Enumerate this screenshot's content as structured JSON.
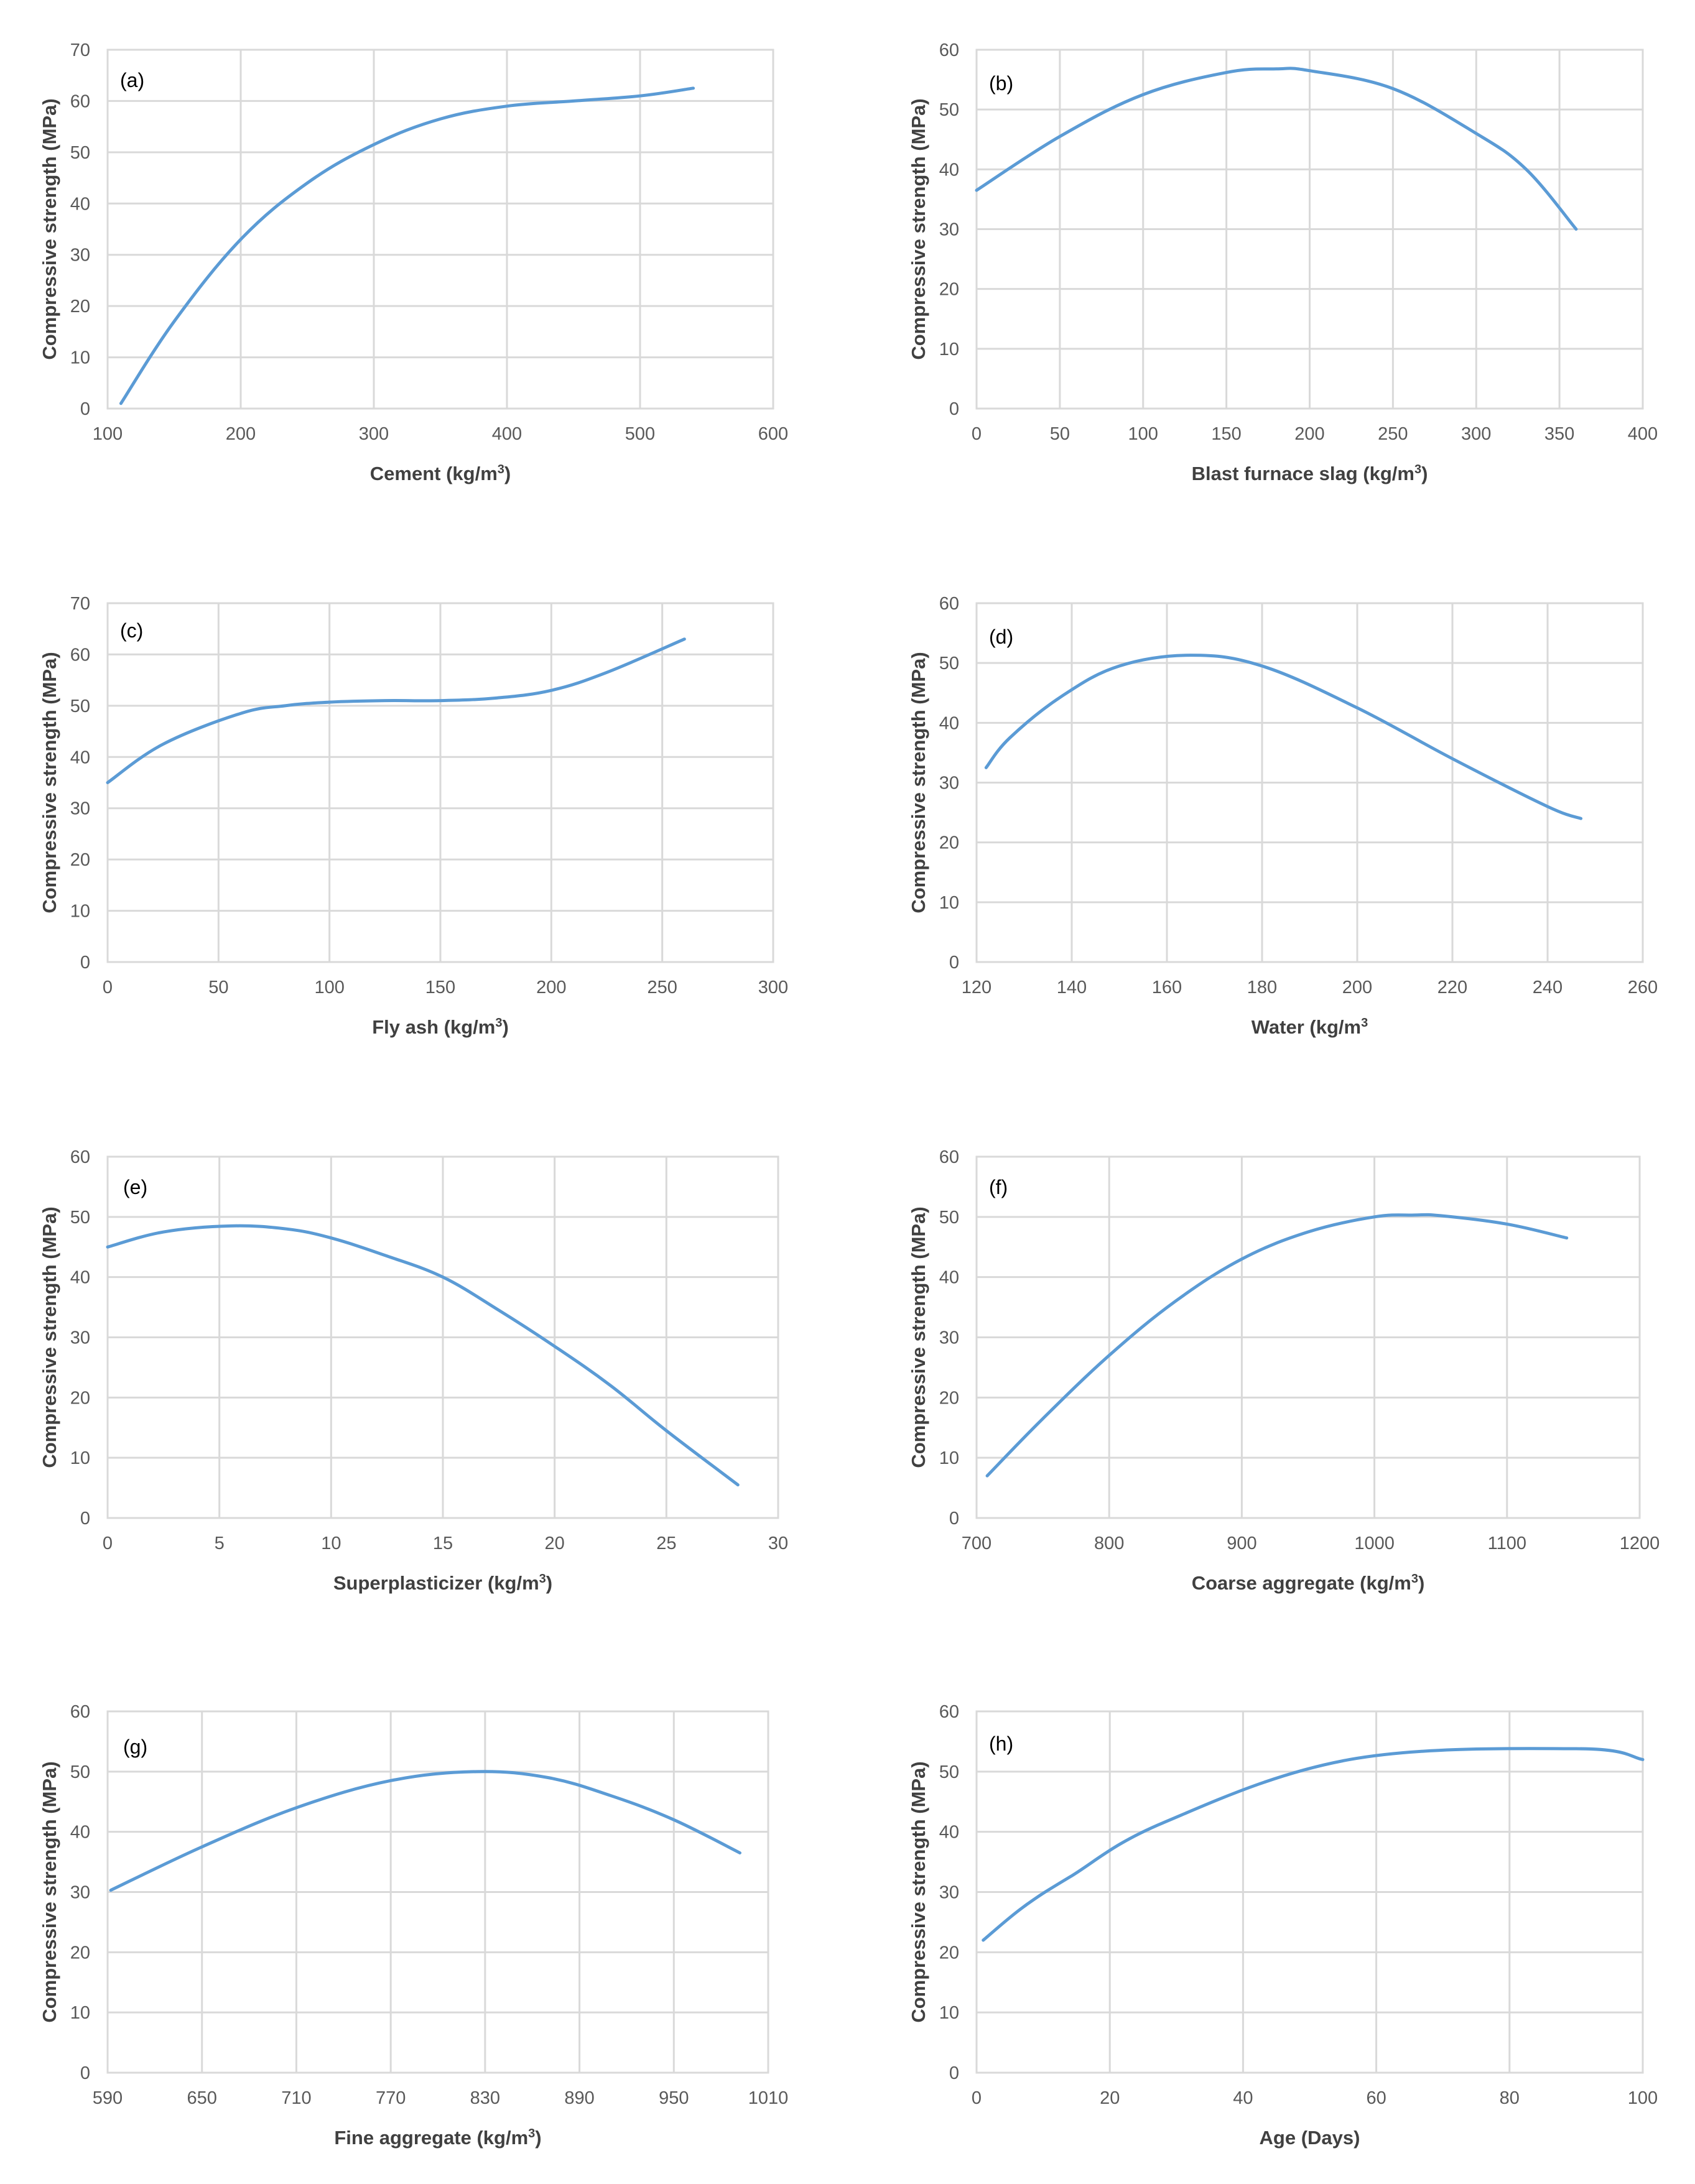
{
  "chart_data": [
    {
      "type": "line",
      "panel_label": "(a)",
      "xlabel": "Cement (kg/m",
      "xlabel_unit_exp": "3",
      "xlabel_tail": ")",
      "ylabel": "Compressive strength (MPa)",
      "xlim": [
        100,
        600
      ],
      "ylim": [
        0,
        70
      ],
      "xticks": [
        100,
        200,
        300,
        400,
        500,
        600
      ],
      "yticks": [
        0,
        10,
        20,
        30,
        40,
        50,
        60,
        70
      ],
      "series": [
        {
          "name": "Compressive strength",
          "x": [
            110,
            150,
            200,
            250,
            300,
            350,
            400,
            450,
            500,
            540
          ],
          "y": [
            1,
            17,
            33,
            44,
            51.5,
            56.5,
            59,
            60,
            61,
            62.5
          ]
        }
      ]
    },
    {
      "type": "line",
      "panel_label": "(b)",
      "xlabel": "Blast furnace slag (kg/m",
      "xlabel_unit_exp": "3",
      "xlabel_tail": ")",
      "ylabel": "Compressive strength (MPa)",
      "xlim": [
        0,
        400
      ],
      "ylim": [
        0,
        60
      ],
      "xticks": [
        0,
        50,
        100,
        150,
        200,
        250,
        300,
        350,
        400
      ],
      "yticks": [
        0,
        10,
        20,
        30,
        40,
        50,
        60
      ],
      "series": [
        {
          "name": "Compressive strength",
          "x": [
            0,
            50,
            100,
            150,
            180,
            200,
            250,
            300,
            330,
            360
          ],
          "y": [
            36.5,
            45.5,
            52.5,
            56.2,
            56.8,
            56.5,
            53.5,
            46,
            40,
            30
          ]
        }
      ]
    },
    {
      "type": "line",
      "panel_label": "(c)",
      "xlabel": "Fly ash  (kg/m",
      "xlabel_unit_exp": "3",
      "xlabel_tail": ")",
      "ylabel": "Compressive strength (MPa)",
      "xlim": [
        0,
        300
      ],
      "ylim": [
        0,
        70
      ],
      "xticks": [
        0,
        50,
        100,
        150,
        200,
        250,
        300
      ],
      "yticks": [
        0,
        10,
        20,
        30,
        40,
        50,
        60,
        70
      ],
      "series": [
        {
          "name": "Compressive strength",
          "x": [
            0,
            25,
            60,
            80,
            100,
            125,
            150,
            175,
            200,
            225,
            260
          ],
          "y": [
            35,
            42.5,
            48.5,
            50,
            50.7,
            51,
            51,
            51.5,
            53,
            56.5,
            63
          ]
        }
      ]
    },
    {
      "type": "line",
      "panel_label": "(d)",
      "xlabel": "Water (kg/m",
      "xlabel_unit_exp": "3",
      "xlabel_tail": "",
      "ylabel": "Compressive strength (MPa)",
      "xlim": [
        120,
        260
      ],
      "ylim": [
        0,
        60
      ],
      "xticks": [
        120,
        140,
        160,
        180,
        200,
        220,
        240,
        260
      ],
      "yticks": [
        0,
        10,
        20,
        30,
        40,
        50,
        60
      ],
      "series": [
        {
          "name": "Compressive strength",
          "x": [
            122,
            127,
            138,
            150,
            165,
            180,
            200,
            220,
            240,
            247
          ],
          "y": [
            32.5,
            37.5,
            44.5,
            49.5,
            51.3,
            49.5,
            42.5,
            34,
            26,
            24
          ]
        }
      ]
    },
    {
      "type": "line",
      "panel_label": "(e)",
      "xlabel": "Superplasticizer (kg/m",
      "xlabel_unit_exp": "3",
      "xlabel_tail": ")",
      "ylabel": "Compressive strength (MPa)",
      "xlim": [
        0,
        30
      ],
      "ylim": [
        0,
        60
      ],
      "xticks": [
        0,
        5,
        10,
        15,
        20,
        25,
        30
      ],
      "yticks": [
        0,
        10,
        20,
        30,
        40,
        50,
        60
      ],
      "series": [
        {
          "name": "Compressive strength",
          "x": [
            0,
            2.5,
            5.5,
            8,
            10,
            12.5,
            15,
            17.5,
            20,
            22.5,
            25,
            28.2
          ],
          "y": [
            45,
            47.5,
            48.5,
            48,
            46.5,
            43.5,
            40,
            34.5,
            28.5,
            22,
            14.5,
            5.5
          ]
        }
      ]
    },
    {
      "type": "line",
      "panel_label": "(f)",
      "xlabel": "Coarse aggregate (kg/m",
      "xlabel_unit_exp": "3",
      "xlabel_tail": ")",
      "ylabel": "Compressive strength (MPa)",
      "xlim": [
        700,
        1200
      ],
      "ylim": [
        0,
        60
      ],
      "xticks": [
        700,
        800,
        900,
        1000,
        1100,
        1200
      ],
      "yticks": [
        0,
        10,
        20,
        30,
        40,
        50,
        60
      ],
      "series": [
        {
          "name": "Compressive strength",
          "x": [
            708,
            750,
            800,
            850,
            900,
            950,
            1000,
            1030,
            1050,
            1100,
            1145
          ],
          "y": [
            7,
            16.5,
            27,
            36,
            43,
            47.5,
            50,
            50.3,
            50.2,
            48.8,
            46.5
          ]
        }
      ]
    },
    {
      "type": "line",
      "panel_label": "(g)",
      "xlabel": "Fine aggregate (kg/m",
      "xlabel_unit_exp": "3",
      "xlabel_tail": ")",
      "ylabel": "Compressive strength (MPa)",
      "xlim": [
        590,
        1010
      ],
      "ylim": [
        0,
        60
      ],
      "xticks": [
        590,
        650,
        710,
        770,
        830,
        890,
        950,
        1010
      ],
      "yticks": [
        0,
        10,
        20,
        30,
        40,
        50,
        60
      ],
      "series": [
        {
          "name": "Compressive strength",
          "x": [
            592,
            650,
            710,
            770,
            825,
            870,
            910,
            950,
            992
          ],
          "y": [
            30.3,
            37.5,
            44,
            48.5,
            50,
            49,
            46,
            42,
            36.5
          ]
        }
      ]
    },
    {
      "type": "line",
      "panel_label": "(h)",
      "xlabel": "Age (Days)",
      "xlabel_unit_exp": "",
      "xlabel_tail": "",
      "ylabel": "Compressive strength (MPa)",
      "xlim": [
        0,
        100
      ],
      "ylim": [
        0,
        60
      ],
      "xticks": [
        0,
        20,
        40,
        60,
        80,
        100
      ],
      "yticks": [
        0,
        10,
        20,
        30,
        40,
        50,
        60
      ],
      "series": [
        {
          "name": "Compressive strength",
          "x": [
            1,
            7,
            14,
            28,
            56,
            90,
            100
          ],
          "y": [
            22,
            27.5,
            32.5,
            41.5,
            52,
            53.8,
            52
          ]
        }
      ]
    }
  ]
}
